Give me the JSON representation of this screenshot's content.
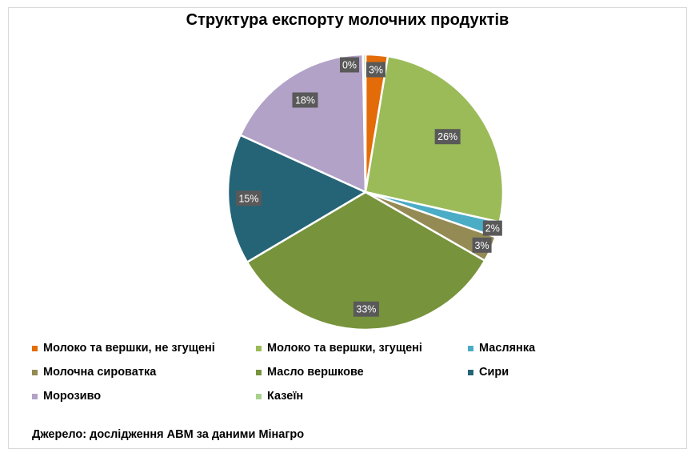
{
  "chart_data": {
    "type": "pie",
    "title": "Структура експорту молочних продуктів",
    "categories": [
      "Молоко та вершки, не згущені",
      "Молоко та вершки, згущені",
      "Маслянка",
      "Молочна сироватка",
      "Масло вершкове",
      "Сири",
      "Морозиво",
      "Казеїн"
    ],
    "values": [
      2.6,
      25.9,
      1.8,
      3.0,
      33.2,
      15.3,
      17.9,
      0.3
    ],
    "data_labels": [
      "3%",
      "26%",
      "2%",
      "3%",
      "33%",
      "15%",
      "18%",
      "0%"
    ],
    "colors": [
      "#e36c09",
      "#9bbb59",
      "#4bacc6",
      "#948a54",
      "#77933c",
      "#256476",
      "#b2a2c7",
      "#a9d18e"
    ],
    "legend_position": "bottom"
  },
  "source": "Джерело: дослідження АВМ за даними Мінагро"
}
